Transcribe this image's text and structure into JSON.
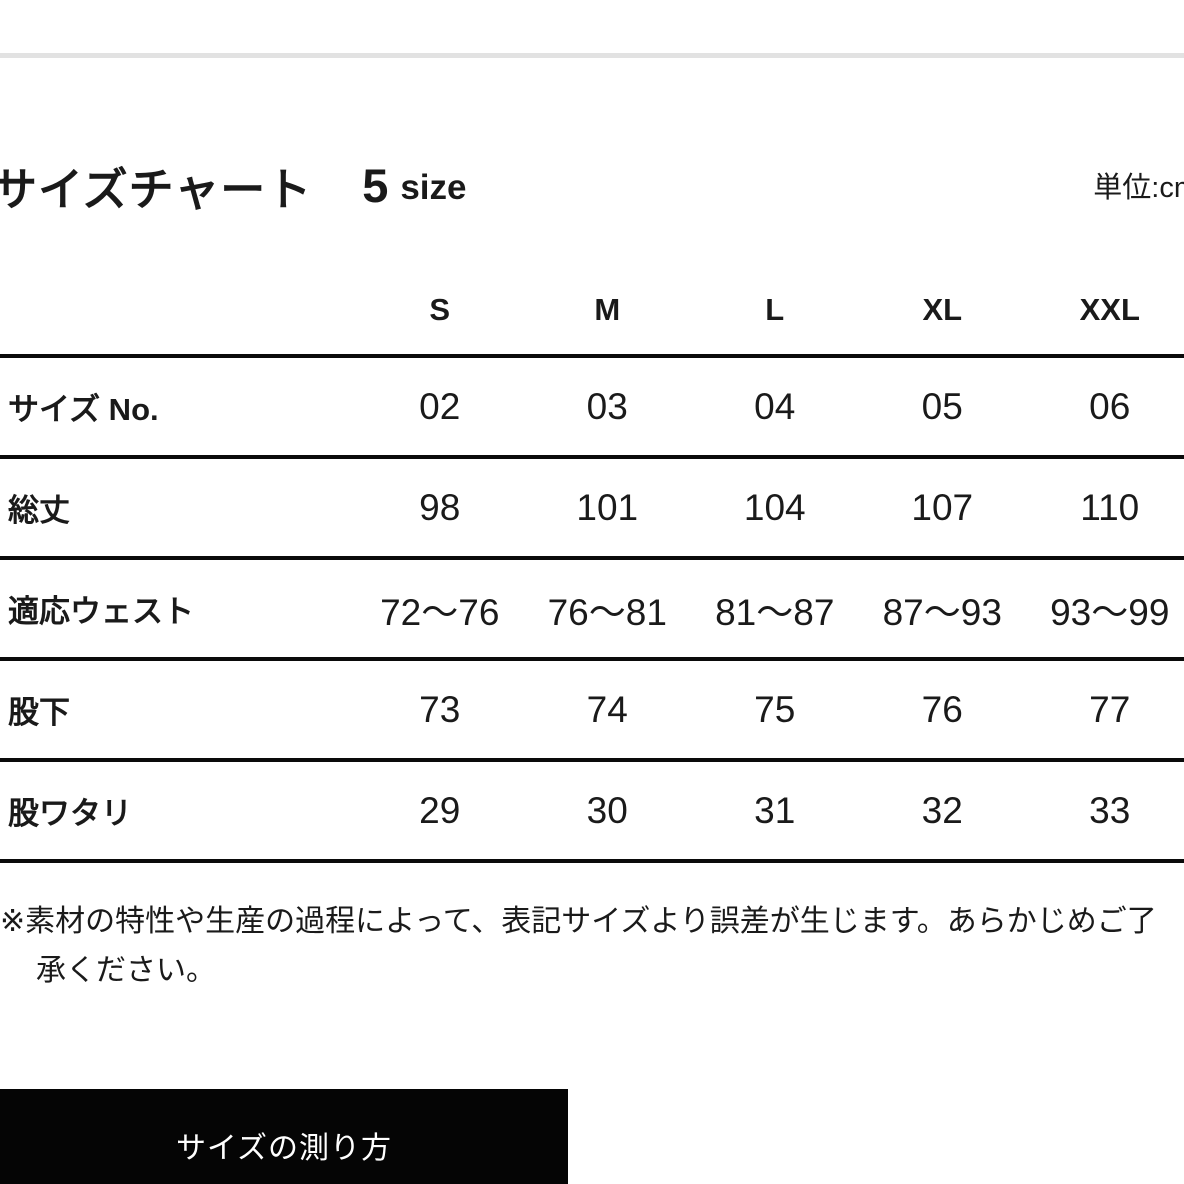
{
  "header": {
    "title": "サイズチャート",
    "size_count": "5",
    "size_word": "size",
    "unit": "単位:cm"
  },
  "table": {
    "size_headers": [
      "S",
      "M",
      "L",
      "XL",
      "XXL"
    ],
    "rows": [
      {
        "label": "サイズ No.",
        "values": [
          "02",
          "03",
          "04",
          "05",
          "06"
        ]
      },
      {
        "label": "総丈",
        "values": [
          "98",
          "101",
          "104",
          "107",
          "110"
        ]
      },
      {
        "label": "適応ウェスト",
        "values": [
          "72〜76",
          "76〜81",
          "81〜87",
          "87〜93",
          "93〜99"
        ]
      },
      {
        "label": "股下",
        "values": [
          "73",
          "74",
          "75",
          "76",
          "77"
        ]
      },
      {
        "label": "股ワタリ",
        "values": [
          "29",
          "30",
          "31",
          "32",
          "33"
        ]
      }
    ]
  },
  "note_lines": [
    "※素材の特性や生産の過程によって、表記サイズより誤差が生じます。あらかじめご了",
    "承ください。"
  ],
  "button": {
    "label": "サイズの測り方"
  },
  "colors": {
    "text": "#1a1a1a",
    "rule_black": "#0a0a0a",
    "divider_gray": "#e2e2e2",
    "button_bg": "#050505",
    "button_text": "#ffffff"
  }
}
